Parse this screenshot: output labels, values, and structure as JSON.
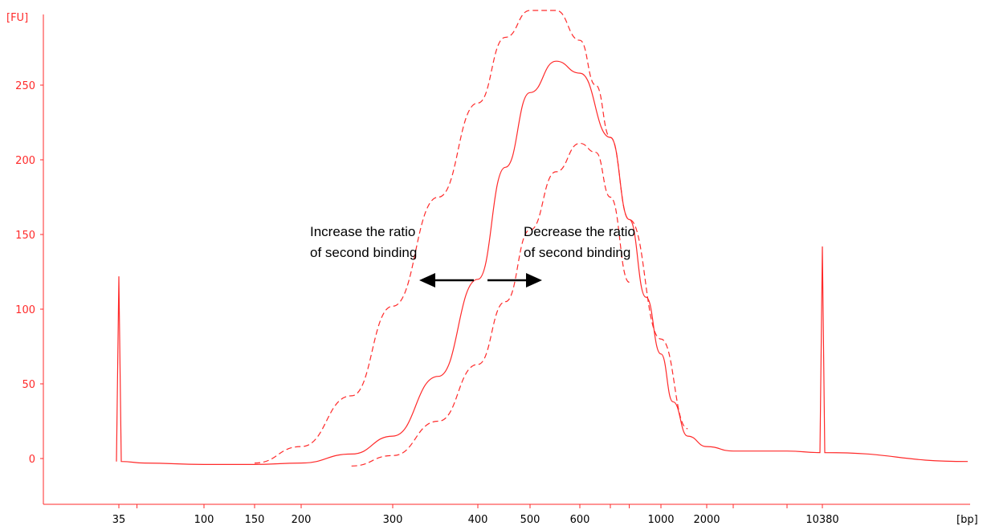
{
  "chart_data": {
    "type": "line",
    "y_unit_label": "[FU]",
    "x_unit_label": "[bp]",
    "y_ticks": [
      0,
      50,
      100,
      150,
      200,
      250
    ],
    "ylim": [
      -30,
      300
    ],
    "x_ticks": [
      "35",
      "100",
      "150",
      "200",
      "300",
      "400",
      "500",
      "600",
      "1000",
      "2000",
      "10380"
    ],
    "x_scale": "non-linear (ladder-calibrated)",
    "grid": false,
    "series": [
      {
        "style": "solid",
        "x": [
          35,
          35,
          35,
          50,
          100,
          150,
          200,
          250,
          300,
          350,
          400,
          450,
          500,
          550,
          600,
          700,
          800,
          900,
          1000,
          1200,
          1500,
          2000,
          3000,
          5000,
          10380,
          10380,
          10380,
          15000
        ],
        "y": [
          -2,
          122,
          -2,
          -3,
          -4,
          -4,
          -3,
          3,
          15,
          55,
          120,
          195,
          245,
          266,
          258,
          215,
          160,
          108,
          70,
          38,
          15,
          8,
          5,
          5,
          4,
          142,
          4,
          -2
        ]
      },
      {
        "style": "dashed",
        "x": [
          150,
          200,
          250,
          300,
          350,
          400,
          450,
          500,
          550,
          600,
          650,
          700,
          800,
          1000,
          1500
        ],
        "y": [
          -3,
          8,
          42,
          102,
          175,
          238,
          282,
          300,
          300,
          280,
          250,
          215,
          160,
          80,
          20
        ]
      },
      {
        "style": "dashed",
        "x": [
          250,
          300,
          350,
          400,
          450,
          500,
          550,
          600,
          650,
          700,
          800
        ],
        "y": [
          -5,
          2,
          25,
          63,
          105,
          153,
          192,
          211,
          205,
          175,
          118
        ]
      }
    ],
    "annotations": [
      {
        "text_lines": [
          "Increase the ratio",
          "of second binding"
        ],
        "arrow": "left"
      },
      {
        "text_lines": [
          "Decrease the ratio",
          "of second binding"
        ],
        "arrow": "right"
      }
    ]
  }
}
